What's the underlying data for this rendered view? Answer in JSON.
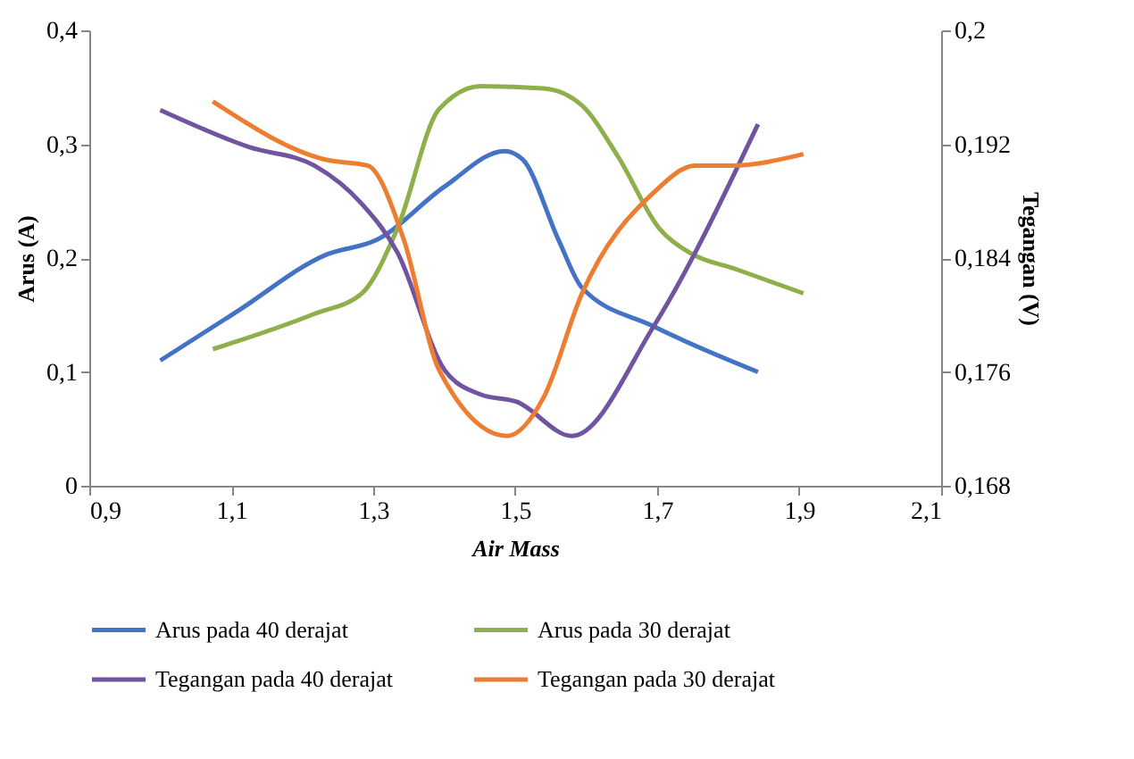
{
  "chart_data": {
    "type": "line",
    "xlabel": "Air Mass",
    "ylabel": "Arus (A)",
    "y2label": "Tegangan (V)",
    "xlim": [
      0.9,
      2.1
    ],
    "xticks": [
      {
        "value": 0.9,
        "label": "0,9"
      },
      {
        "value": 1.1,
        "label": "1,1"
      },
      {
        "value": 1.3,
        "label": "1,3"
      },
      {
        "value": 1.5,
        "label": "1,5"
      },
      {
        "value": 1.7,
        "label": "1,7"
      },
      {
        "value": 1.9,
        "label": "1,9"
      },
      {
        "value": 2.1,
        "label": "2,1"
      }
    ],
    "ylim": [
      0,
      0.4
    ],
    "yticks": [
      0,
      {
        "value": 0.1,
        "label": "0,1"
      },
      {
        "value": 0.2,
        "label": "0,2"
      },
      {
        "value": 0.3,
        "label": "0,3"
      },
      {
        "value": 0.4,
        "label": "0,4"
      }
    ],
    "y2lim": [
      0.168,
      0.2
    ],
    "y2ticks": [
      {
        "value": 0.168,
        "label": "0,168"
      },
      {
        "value": 0.176,
        "label": "0,176"
      },
      {
        "value": 0.184,
        "label": "0,184"
      },
      {
        "value": 0.192,
        "label": "0,192"
      },
      {
        "value": 0.2,
        "label": "0,2"
      }
    ],
    "grid": false,
    "legend": "bottom",
    "marker": "none",
    "line_style": "solid",
    "series": [
      {
        "name": "Arus pada 40 derajat",
        "color": "#4472c4",
        "x": [
          1.0,
          1.108,
          1.234,
          1.305,
          1.401,
          1.485,
          1.51,
          1.561,
          1.594,
          1.695,
          1.842
        ],
        "values": [
          0.11,
          0.153,
          0.203,
          0.216,
          0.263,
          0.294,
          0.287,
          0.216,
          0.174,
          0.14,
          0.1
        ]
      },
      {
        "name": "Arus pada 30 derajat",
        "color": "#8db04a",
        "x": [
          1.074,
          1.217,
          1.284,
          1.334,
          1.393,
          1.452,
          1.54,
          1.594,
          1.645,
          1.703,
          1.745,
          1.812,
          1.906
        ],
        "values": [
          0.12,
          0.151,
          0.169,
          0.226,
          0.331,
          0.351,
          0.349,
          0.334,
          0.289,
          0.226,
          0.205,
          0.19,
          0.169
        ]
      },
      {
        "name": "Tegangan pada 40 derajat",
        "color": "#7054a0",
        "axis": "y2",
        "x": [
          1.0,
          1.125,
          1.217,
          1.284,
          1.334,
          1.401,
          1.452,
          1.502,
          1.58,
          1.695,
          1.842
        ],
        "values": [
          0.1944,
          0.1918,
          0.1905,
          0.1878,
          0.1844,
          0.1761,
          0.1744,
          0.1739,
          0.1715,
          0.1792,
          0.1934
        ]
      },
      {
        "name": "Tegangan pada 30 derajat",
        "color": "#ed7d31",
        "axis": "y2",
        "x": [
          1.074,
          1.234,
          1.292,
          1.343,
          1.393,
          1.489,
          1.54,
          1.594,
          1.695,
          1.754,
          1.804,
          1.906
        ],
        "values": [
          0.195,
          0.1909,
          0.1905,
          0.1853,
          0.1761,
          0.1715,
          0.1742,
          0.1815,
          0.1886,
          0.1905,
          0.1905,
          0.1913
        ]
      }
    ]
  }
}
